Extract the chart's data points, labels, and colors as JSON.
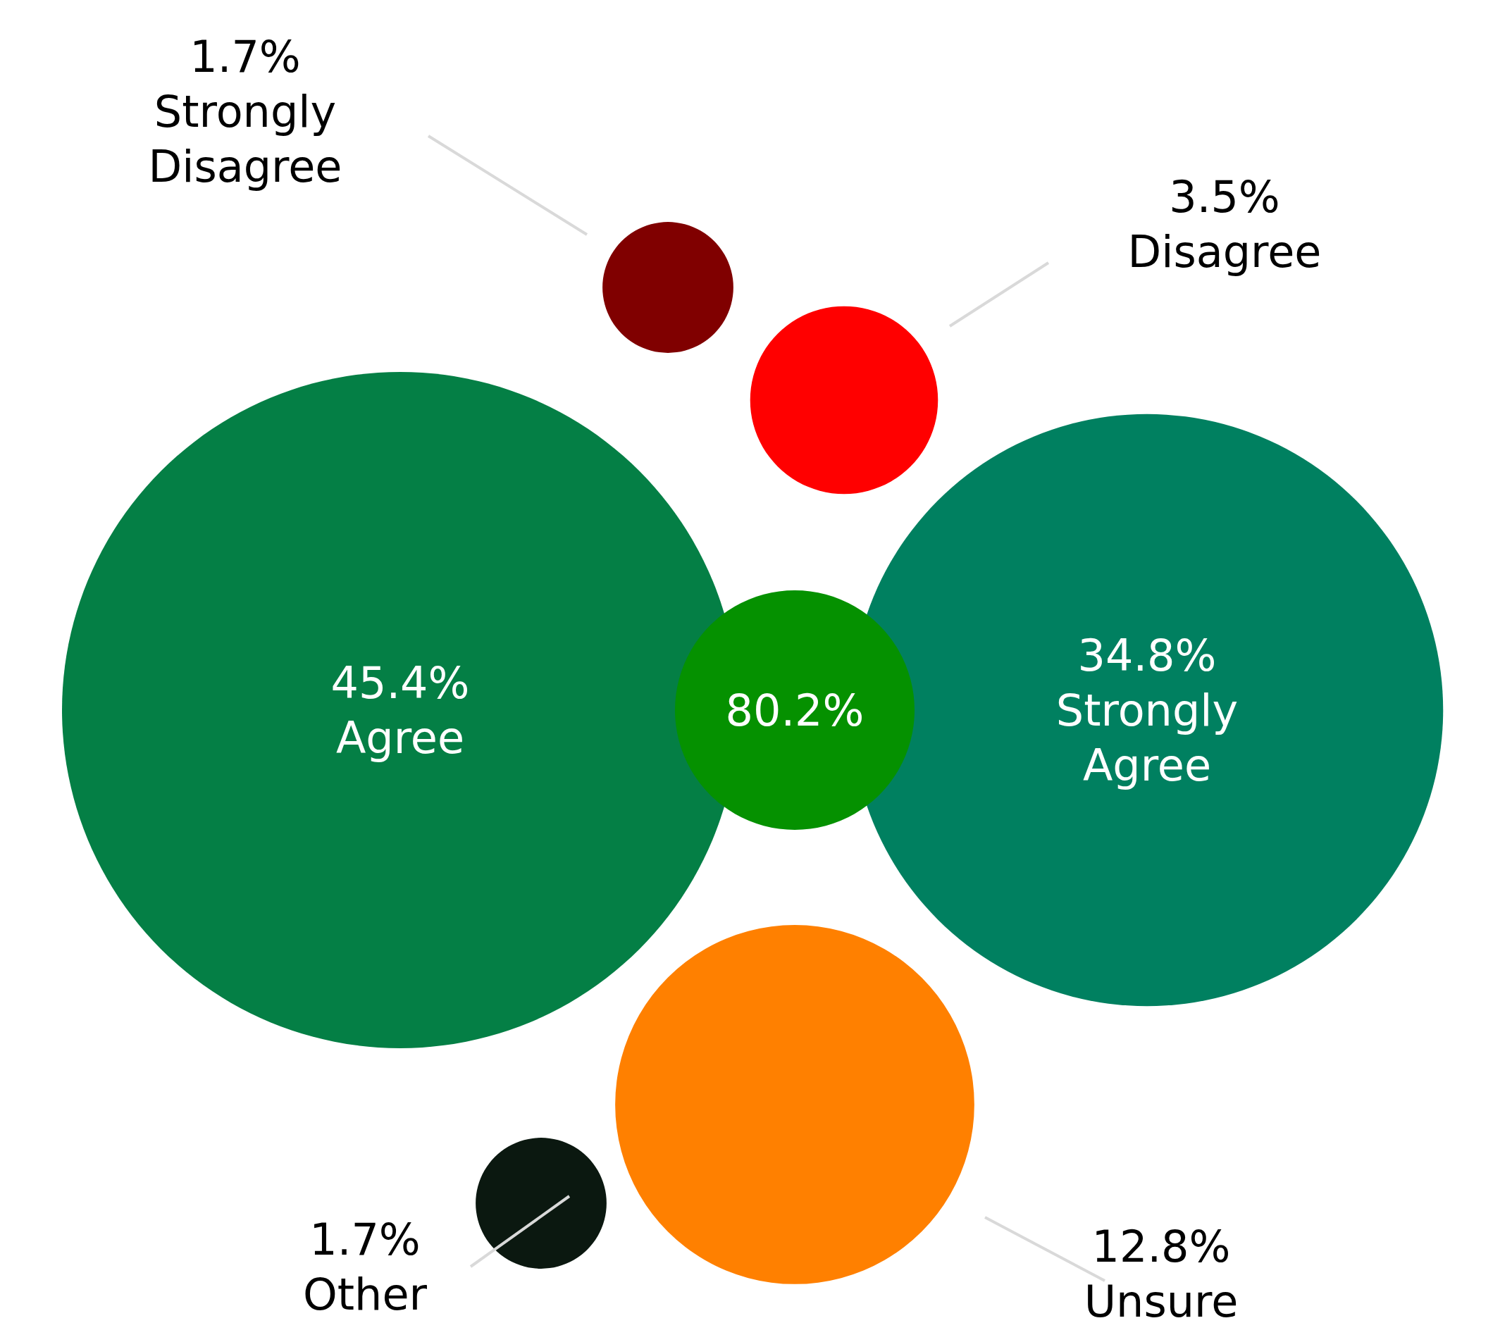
{
  "chart_data": {
    "type": "other",
    "categories": [
      "Strongly Disagree",
      "Disagree",
      "Agree",
      null,
      "Strongly Agree",
      "Other",
      "Unsure"
    ],
    "values": [
      1.7,
      3.5,
      45.4,
      80.2,
      34.8,
      1.7,
      12.8
    ],
    "value_labels": [
      "1.7%",
      "3.5%",
      "45.4%",
      "80.2%",
      "34.8%",
      "1.7%",
      "12.8%"
    ],
    "colors": [
      "#800000",
      "#ff0000",
      "#047f45",
      "#059100",
      "#008060",
      "#0b1810",
      "#ff8000"
    ]
  }
}
